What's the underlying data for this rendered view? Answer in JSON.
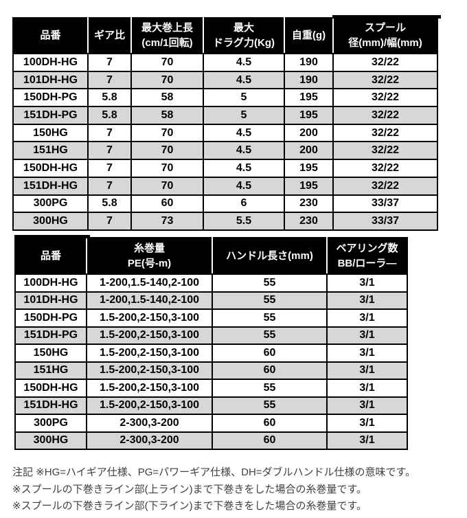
{
  "colors": {
    "header_bg": "#000000",
    "header_text": "#ffffff",
    "stripe_bg": "#d7d7d7",
    "border": "#000000",
    "note_text": "#404040",
    "page_bg": "#ffffff"
  },
  "tables": [
    {
      "name": "reel-spec-table",
      "columns": [
        {
          "lines": [
            "品番"
          ]
        },
        {
          "lines": [
            "ギア比"
          ]
        },
        {
          "lines": [
            "最大巻上長",
            "(cm/1回転)"
          ]
        },
        {
          "lines": [
            "最大",
            "ドラグ力(Kg)"
          ]
        },
        {
          "lines": [
            "自重(g)"
          ]
        },
        {
          "lines": [
            "スプール",
            "径(mm)/幅(mm)"
          ]
        }
      ],
      "rows": [
        [
          "100DH-HG",
          "7",
          "70",
          "4.5",
          "190",
          "32/22"
        ],
        [
          "101DH-HG",
          "7",
          "70",
          "4.5",
          "190",
          "32/22"
        ],
        [
          "150DH-PG",
          "5.8",
          "58",
          "5",
          "195",
          "32/22"
        ],
        [
          "151DH-PG",
          "5.8",
          "58",
          "5",
          "195",
          "32/22"
        ],
        [
          "150HG",
          "7",
          "70",
          "4.5",
          "200",
          "32/22"
        ],
        [
          "151HG",
          "7",
          "70",
          "4.5",
          "200",
          "32/22"
        ],
        [
          "150DH-HG",
          "7",
          "70",
          "4.5",
          "195",
          "32/22"
        ],
        [
          "151DH-HG",
          "7",
          "70",
          "4.5",
          "195",
          "32/22"
        ],
        [
          "300PG",
          "5.8",
          "60",
          "6",
          "230",
          "33/37"
        ],
        [
          "300HG",
          "7",
          "73",
          "5.5",
          "230",
          "33/37"
        ]
      ]
    },
    {
      "name": "line-capacity-table",
      "columns": [
        {
          "lines": [
            "品番"
          ]
        },
        {
          "lines": [
            "糸巻量",
            "PE(号-m)"
          ]
        },
        {
          "lines": [
            "ハンドル長さ(mm)"
          ]
        },
        {
          "lines": [
            "ベアリング数",
            "BB/ローラ―"
          ]
        }
      ],
      "rows": [
        [
          "100DH-HG",
          "1-200,1.5-140,2-100",
          "55",
          "3/1"
        ],
        [
          "101DH-HG",
          "1-200,1.5-140,2-100",
          "55",
          "3/1"
        ],
        [
          "150DH-PG",
          "1.5-200,2-150,3-100",
          "55",
          "3/1"
        ],
        [
          "151DH-PG",
          "1.5-200,2-150,3-100",
          "55",
          "3/1"
        ],
        [
          "150HG",
          "1.5-200,2-150,3-100",
          "60",
          "3/1"
        ],
        [
          "151HG",
          "1.5-200,2-150,3-100",
          "60",
          "3/1"
        ],
        [
          "150DH-HG",
          "1.5-200,2-150,3-100",
          "55",
          "3/1"
        ],
        [
          "151DH-HG",
          "1.5-200,2-150,3-100",
          "55",
          "3/1"
        ],
        [
          "300PG",
          "2-300,3-200",
          "60",
          "3/1"
        ],
        [
          "300HG",
          "2-300,3-200",
          "60",
          "3/1"
        ]
      ]
    }
  ],
  "notes": [
    "注記 ※HG=ハイギア仕様、PG=パワーギア仕様、DH=ダブルハンドル仕様の意味です。",
    "※スプールの下巻きライン部(上ライン)まで下巻きをした場合の糸巻量です。",
    "※スプールの下巻きライン部(下ライン)まで下巻きをした場合の糸巻量です。"
  ]
}
